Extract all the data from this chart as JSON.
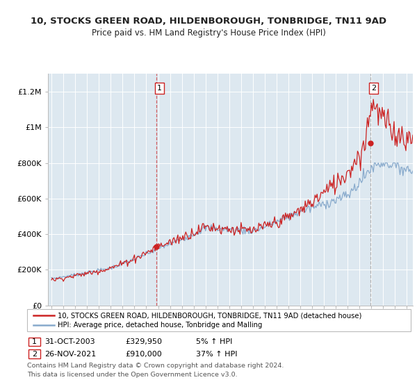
{
  "title_line1": "10, STOCKS GREEN ROAD, HILDENBOROUGH, TONBRIDGE, TN11 9AD",
  "title_line2": "Price paid vs. HM Land Registry's House Price Index (HPI)",
  "legend_line1": "10, STOCKS GREEN ROAD, HILDENBOROUGH, TONBRIDGE, TN11 9AD (detached house)",
  "legend_line2": "HPI: Average price, detached house, Tonbridge and Malling",
  "footnote": "Contains HM Land Registry data © Crown copyright and database right 2024.\nThis data is licensed under the Open Government Licence v3.0.",
  "annotation1_date": "31-OCT-2003",
  "annotation1_price": "£329,950",
  "annotation1_hpi": "5% ↑ HPI",
  "annotation2_date": "26-NOV-2021",
  "annotation2_price": "£910,000",
  "annotation2_hpi": "37% ↑ HPI",
  "red_color": "#cc2222",
  "blue_color": "#88aacc",
  "bg_color": "#dde8f0",
  "grid_color": "#ffffff",
  "ylim": [
    0,
    1300000
  ],
  "yticks": [
    0,
    200000,
    400000,
    600000,
    800000,
    1000000,
    1200000
  ],
  "ytick_labels": [
    "£0",
    "£200K",
    "£400K",
    "£600K",
    "£800K",
    "£1M",
    "£1.2M"
  ],
  "sale1_year": 2003.83,
  "sale1_price": 329950,
  "sale2_year": 2021.9,
  "sale2_price": 910000,
  "vline1_year": 2003.83,
  "vline2_year": 2021.9,
  "xlim_left": 1994.7,
  "xlim_right": 2025.5
}
